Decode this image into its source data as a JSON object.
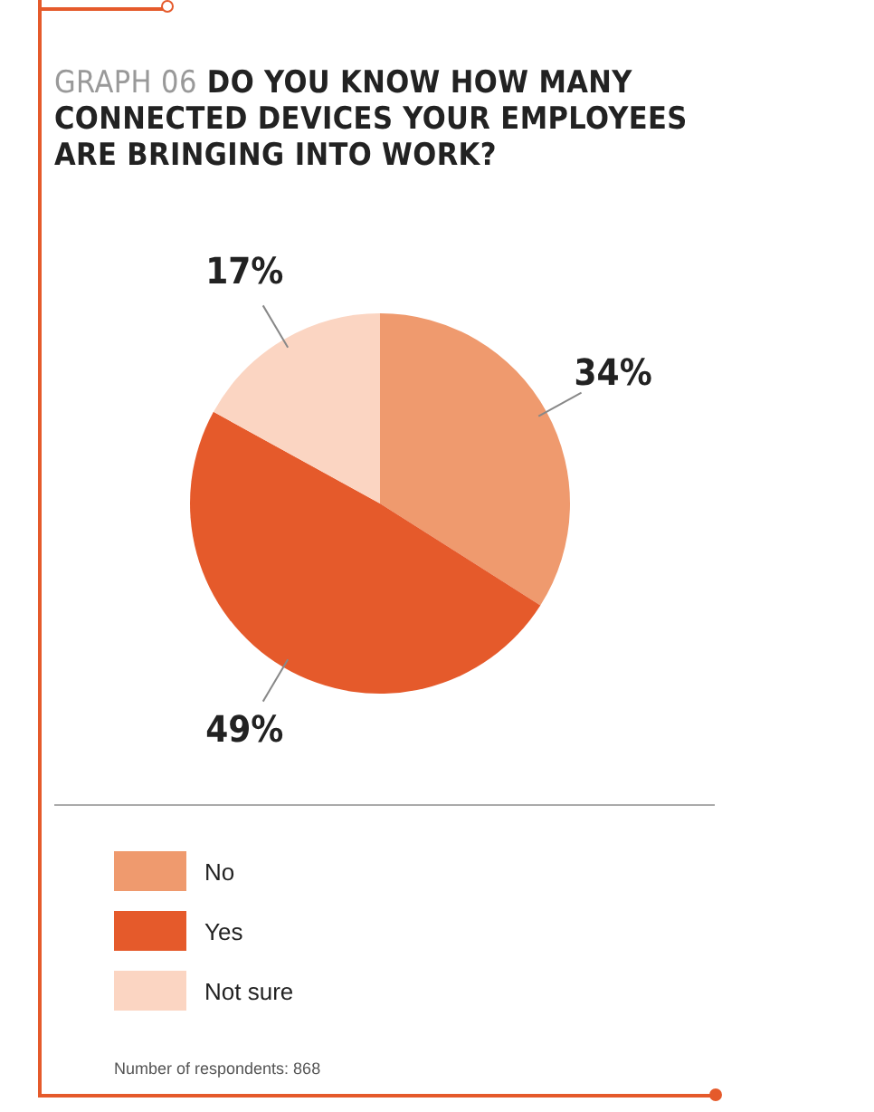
{
  "chart_data": {
    "type": "pie",
    "title": "GRAPH 06 DO YOU KNOW HOW MANY CONNECTED DEVICES YOUR EMPLOYEES ARE BRINGING INTO WORK?",
    "categories": [
      "No",
      "Yes",
      "Not sure"
    ],
    "values": [
      34,
      49,
      17
    ],
    "colors": [
      "#ef9a6e",
      "#e55a2b",
      "#fbd5c2"
    ],
    "value_labels": [
      "34%",
      "49%",
      "17%"
    ],
    "legend": "bottom left",
    "annotations": [
      "Number of respondents: 868"
    ]
  }
}
